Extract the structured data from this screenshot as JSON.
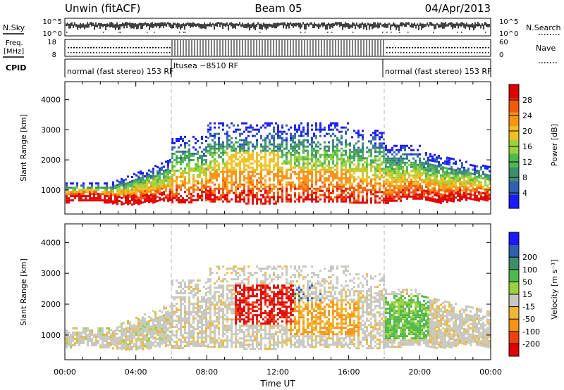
{
  "header": {
    "station": "Unwin (fitACF)",
    "beam": "Beam 05",
    "date": "04/Apr/2013"
  },
  "noise_panel": {
    "left_label": "N.Sky",
    "right_label": "N.Search",
    "left_ticks": [
      "10^5",
      "10^0"
    ],
    "right_ticks": [
      "10^5",
      "10^0"
    ]
  },
  "freq_panel": {
    "left_label_line1": "Freq.",
    "left_label_line2": "[MHz]",
    "right_label": "Nave",
    "left_ticks": [
      "18",
      "8"
    ],
    "right_ticks": [
      "60",
      "0"
    ]
  },
  "cpid": {
    "label": "CPID",
    "segments": [
      {
        "text": "normal (fast stereo) 153 RF"
      },
      {
        "text": "Itusea −8510 RF"
      },
      {
        "text": "normal (fast stereo) 153 RF"
      }
    ]
  },
  "colors": {
    "power_scale": [
      "#1a1aff",
      "#2e5fb0",
      "#3e8e6e",
      "#4fb84f",
      "#9bd23c",
      "#f0c020",
      "#f79414",
      "#f05a0a",
      "#e00000"
    ],
    "velocity_scale": [
      "#e00000",
      "#f04010",
      "#f79414",
      "#f0b830",
      "#c8c8c0",
      "#9bd23c",
      "#4fb84f",
      "#3e8e6e",
      "#2e5fb0",
      "#1a1aff"
    ]
  },
  "chart_data": [
    {
      "type": "heatmap",
      "title": "",
      "xlabel": "Time UT",
      "ylabel": "Slant Range [km]",
      "x_ticks": [
        "00:00",
        "04:00",
        "08:00",
        "12:00",
        "16:00",
        "20:00",
        "00:00"
      ],
      "xlim_hours": [
        0,
        24
      ],
      "y_ticks": [
        1000,
        2000,
        3000,
        4000
      ],
      "ylim": [
        200,
        4600
      ],
      "colorbar": {
        "label": "Power [dB]",
        "ticks": [
          4,
          8,
          12,
          16,
          20,
          24,
          28
        ],
        "range": [
          0,
          32
        ]
      },
      "mode_boundaries_hours": [
        6.0,
        18.0
      ]
    },
    {
      "type": "heatmap",
      "title": "",
      "xlabel": "Time UT",
      "ylabel": "Slant Range [km]",
      "x_ticks": [
        "00:00",
        "04:00",
        "08:00",
        "12:00",
        "16:00",
        "20:00",
        "00:00"
      ],
      "xlim_hours": [
        0,
        24
      ],
      "y_ticks": [
        1000,
        2000,
        3000,
        4000
      ],
      "ylim": [
        200,
        4600
      ],
      "colorbar": {
        "label": "Velocity [m s⁻¹]",
        "ticks": [
          -200,
          -100,
          -50,
          -15,
          15,
          50,
          100,
          200
        ]
      },
      "mode_boundaries_hours": [
        6.0,
        18.0
      ]
    }
  ]
}
